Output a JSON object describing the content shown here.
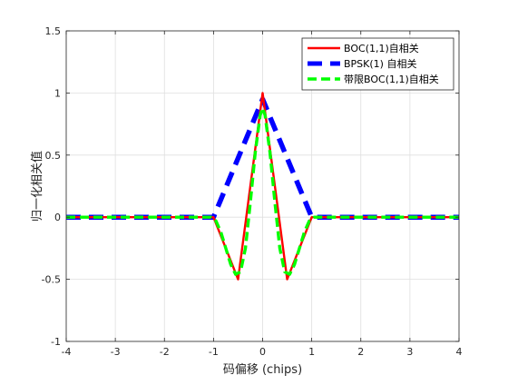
{
  "chart_data": {
    "type": "line",
    "xlabel": "码偏移 (chips)",
    "ylabel": "归一化相关值",
    "xlim": [
      -4,
      4
    ],
    "ylim": [
      -1,
      1.5
    ],
    "xticks": [
      -4,
      -3,
      -2,
      -1,
      0,
      1,
      2,
      3,
      4
    ],
    "yticks": [
      -1,
      -0.5,
      0,
      0.5,
      1,
      1.5
    ],
    "xtick_labels": [
      "-4",
      "-3",
      "-2",
      "-1",
      "0",
      "1",
      "2",
      "3",
      "4"
    ],
    "ytick_labels": [
      "-1",
      "-0.5",
      "0",
      "0.5",
      "1",
      "1.5"
    ],
    "grid": true,
    "legend_position": "top-right",
    "series": [
      {
        "name": "BOC(1,1)自相关",
        "color": "#ff0000",
        "style": "solid",
        "x": [
          -4,
          -1,
          -0.5,
          0,
          0.5,
          1,
          4
        ],
        "y": [
          0,
          0,
          -0.5,
          1,
          -0.5,
          0,
          0
        ]
      },
      {
        "name": "BPSK(1) 自相关",
        "color": "#0000ff",
        "style": "dashed",
        "x": [
          -4,
          -1,
          0,
          1,
          4
        ],
        "y": [
          0,
          0,
          0.95,
          0,
          0
        ]
      },
      {
        "name": "带限BOC(1,1)自相关",
        "color": "#00ff00",
        "style": "dashed",
        "x": [
          -4,
          -1.05,
          -0.95,
          -0.85,
          -0.75,
          -0.65,
          -0.55,
          -0.45,
          -0.35,
          -0.25,
          -0.15,
          -0.05,
          0,
          0.05,
          0.15,
          0.25,
          0.35,
          0.45,
          0.55,
          0.65,
          0.75,
          0.85,
          0.95,
          1.05,
          4
        ],
        "y": [
          0,
          0,
          -0.03,
          -0.12,
          -0.25,
          -0.38,
          -0.46,
          -0.44,
          -0.25,
          0.12,
          0.52,
          0.82,
          0.88,
          0.82,
          0.52,
          0.12,
          -0.25,
          -0.44,
          -0.46,
          -0.38,
          -0.25,
          -0.12,
          -0.03,
          0,
          0
        ]
      }
    ]
  }
}
